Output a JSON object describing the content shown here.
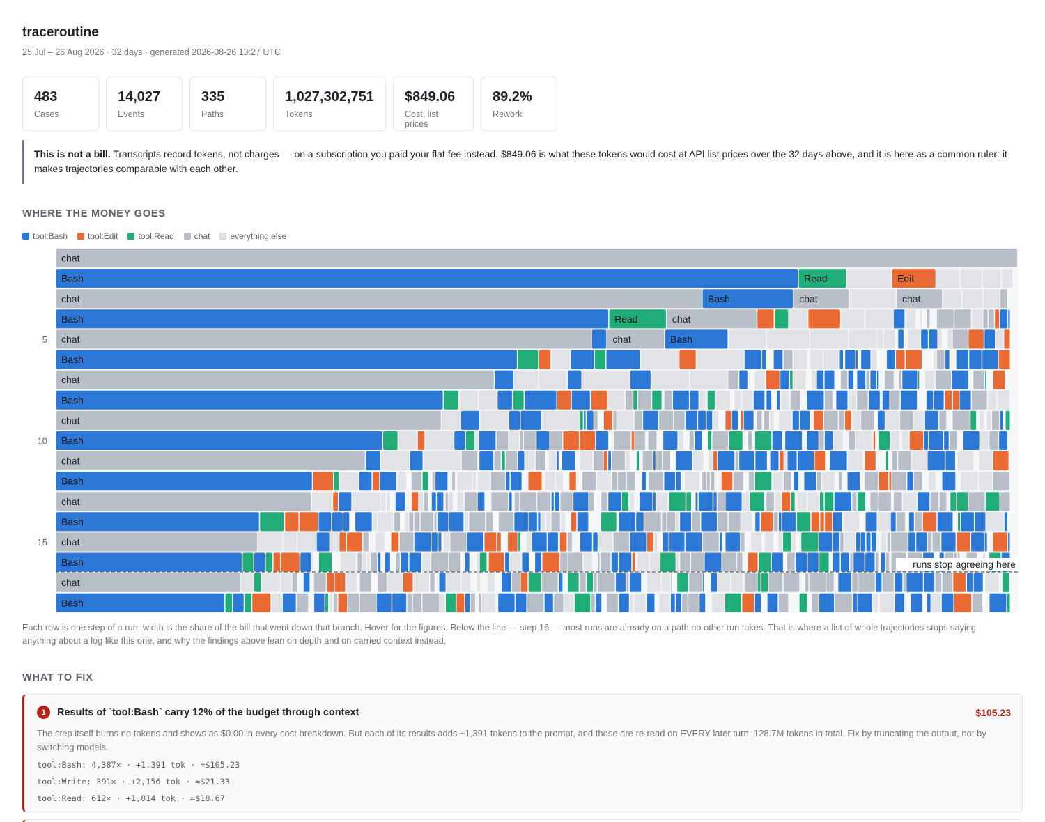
{
  "header": {
    "title": "traceroutine",
    "subtitle": "25 Jul – 26 Aug 2026 · 32 days · generated 2026-08-26 13:27 UTC"
  },
  "stats": [
    {
      "value": "483",
      "label": "Cases"
    },
    {
      "value": "14,027",
      "label": "Events"
    },
    {
      "value": "335",
      "label": "Paths"
    },
    {
      "value": "1,027,302,751",
      "label": "Tokens"
    },
    {
      "value": "$849.06",
      "label": "Cost, list prices"
    },
    {
      "value": "89.2%",
      "label": "Rework"
    }
  ],
  "note": {
    "bold": "This is not a bill.",
    "text": " Transcripts record tokens, not charges — on a subscription you paid your flat fee instead. $849.06 is what these tokens would cost at API list prices over the 32 days above, and it is here as a common ruler: it makes trajectories comparable with each other."
  },
  "money_section": {
    "title": "WHERE THE MONEY GOES",
    "legend": [
      {
        "label": "tool:Bash",
        "color": "#2b78d6"
      },
      {
        "label": "tool:Edit",
        "color": "#ea6a34"
      },
      {
        "label": "tool:Read",
        "color": "#20ad78"
      },
      {
        "label": "chat",
        "color": "#b8bec8"
      },
      {
        "label": "everything else",
        "color": "#e2e3e6"
      }
    ],
    "row_ticks": [
      "5",
      "10",
      "15"
    ],
    "divider_label": "runs stop agreeing here",
    "caption": "Each row is one step of a run; width is the share of the bill that went down that branch. Hover for the figures. Below the line — step 16 — most runs are already on a path no other run takes. That is where a list of whole trajectories stops saying anything about a log like this one, and why the findings above lean on depth and on carried context instead."
  },
  "chart_data": {
    "type": "icicle",
    "rows": 18,
    "divider_after_step": 16,
    "levels": [
      [
        {
          "n": "chat",
          "w": 1.0
        }
      ],
      [
        {
          "n": "Bash",
          "w": 0.772
        },
        {
          "n": "Read",
          "w": 0.05
        },
        {
          "n": "",
          "w": 0.047
        },
        {
          "n": "Edit",
          "w": 0.046
        },
        {
          "n": "",
          "w": 0.025
        },
        {
          "n": "",
          "w": 0.023
        },
        {
          "n": "",
          "w": 0.02
        },
        {
          "n": "",
          "w": 0.012
        }
      ],
      [
        {
          "n": "chat",
          "w": 0.672
        },
        {
          "n": "Bash",
          "w": 0.095
        },
        {
          "n": "chat",
          "w": 0.058
        },
        {
          "n": "",
          "w": 0.049
        },
        {
          "n": "chat",
          "w": 0.048
        },
        {
          "n": "",
          "w": 0.02
        },
        {
          "n": "",
          "w": 0.022
        },
        {
          "n": "",
          "w": 0.018
        }
      ],
      [
        {
          "n": "Bash",
          "w": 0.575
        },
        {
          "n": "Read",
          "w": 0.06
        },
        {
          "n": "chat",
          "w": 0.094
        },
        {
          "n": "Edit",
          "w": 0.018
        },
        {
          "n": "Read",
          "w": 0.015
        },
        {
          "n": "",
          "w": 0.02
        },
        {
          "n": "Edit",
          "w": 0.034
        },
        {
          "n": "",
          "w": 0.025
        },
        {
          "n": "",
          "w": 0.03
        }
      ],
      [
        {
          "n": "chat",
          "w": 0.557
        },
        {
          "n": "Bash",
          "w": 0.016
        },
        {
          "n": "chat",
          "w": 0.06
        },
        {
          "n": "Bash",
          "w": 0.066
        },
        {
          "n": "",
          "w": 0.04
        },
        {
          "n": "",
          "w": 0.045
        },
        {
          "n": "",
          "w": 0.04
        },
        {
          "n": "",
          "w": 0.03
        }
      ],
      [
        {
          "n": "Bash",
          "w": 0.48
        },
        {
          "n": "Read",
          "w": 0.022
        },
        {
          "n": "Edit",
          "w": 0.013
        },
        {
          "n": "",
          "w": 0.02
        },
        {
          "n": "Bash",
          "w": 0.025
        },
        {
          "n": "Read",
          "w": 0.012
        },
        {
          "n": "Bash",
          "w": 0.036
        },
        {
          "n": "",
          "w": 0.04
        },
        {
          "n": "Edit",
          "w": 0.018
        },
        {
          "n": "",
          "w": 0.05
        }
      ],
      [
        {
          "n": "chat",
          "w": 0.456
        },
        {
          "n": "Bash",
          "w": 0.02
        },
        {
          "n": "",
          "w": 0.026
        },
        {
          "n": "",
          "w": 0.03
        },
        {
          "n": "Bash",
          "w": 0.015
        },
        {
          "n": "",
          "w": 0.05
        },
        {
          "n": "Bash",
          "w": 0.022
        },
        {
          "n": "",
          "w": 0.04
        },
        {
          "n": "",
          "w": 0.04
        }
      ],
      [
        {
          "n": "Bash",
          "w": 0.403
        },
        {
          "n": "Read",
          "w": 0.016
        },
        {
          "n": "",
          "w": 0.02
        },
        {
          "n": "",
          "w": 0.02
        },
        {
          "n": "Bash",
          "w": 0.016
        },
        {
          "n": "Read",
          "w": 0.012
        },
        {
          "n": "Bash",
          "w": 0.034
        },
        {
          "n": "Edit",
          "w": 0.015
        },
        {
          "n": "Bash",
          "w": 0.02
        },
        {
          "n": "Edit",
          "w": 0.018
        }
      ],
      [
        {
          "n": "chat",
          "w": 0.401
        },
        {
          "n": "",
          "w": 0.02
        },
        {
          "n": "Bash",
          "w": 0.02
        },
        {
          "n": "",
          "w": 0.03
        },
        {
          "n": "Bash",
          "w": 0.012
        },
        {
          "n": "Bash",
          "w": 0.022
        },
        {
          "n": "",
          "w": 0.04
        }
      ],
      [
        {
          "n": "Bash",
          "w": 0.34
        },
        {
          "n": "Read",
          "w": 0.016
        },
        {
          "n": "",
          "w": 0.02
        },
        {
          "n": "Edit",
          "w": 0.008
        },
        {
          "n": "",
          "w": 0.03
        },
        {
          "n": "Bash",
          "w": 0.012
        },
        {
          "n": "Read",
          "w": 0.01
        }
      ],
      [
        {
          "n": "chat",
          "w": 0.322
        },
        {
          "n": "Bash",
          "w": 0.016
        },
        {
          "n": "",
          "w": 0.03
        },
        {
          "n": "Bash",
          "w": 0.014
        },
        {
          "n": "",
          "w": 0.04
        }
      ],
      [
        {
          "n": "Bash",
          "w": 0.267
        },
        {
          "n": "Edit",
          "w": 0.022
        },
        {
          "n": "Read",
          "w": 0.006
        },
        {
          "n": "",
          "w": 0.02
        },
        {
          "n": "Bash",
          "w": 0.014
        },
        {
          "n": "Edit",
          "w": 0.008
        }
      ],
      [
        {
          "n": "chat",
          "w": 0.266
        },
        {
          "n": "",
          "w": 0.022
        },
        {
          "n": "Edit",
          "w": 0.006
        },
        {
          "n": "Bash",
          "w": 0.014
        },
        {
          "n": "",
          "w": 0.03
        }
      ],
      [
        {
          "n": "Bash",
          "w": 0.212
        },
        {
          "n": "Read",
          "w": 0.026
        },
        {
          "n": "Edit",
          "w": 0.015
        },
        {
          "n": "Edit",
          "w": 0.02
        },
        {
          "n": "Bash",
          "w": 0.014
        },
        {
          "n": "Bash",
          "w": 0.012
        }
      ],
      [
        {
          "n": "chat",
          "w": 0.21
        },
        {
          "n": "",
          "w": 0.026
        },
        {
          "n": "",
          "w": 0.015
        },
        {
          "n": "",
          "w": 0.02
        },
        {
          "n": "Bash",
          "w": 0.014
        }
      ],
      [
        {
          "n": "Bash",
          "w": 0.194
        },
        {
          "n": "Read",
          "w": 0.012
        },
        {
          "n": "Bash",
          "w": 0.012
        },
        {
          "n": "Read",
          "w": 0.008
        },
        {
          "n": "Edit",
          "w": 0.008
        },
        {
          "n": "Edit",
          "w": 0.02
        },
        {
          "n": "Bash",
          "w": 0.012
        }
      ],
      [
        {
          "n": "chat",
          "w": 0.192
        },
        {
          "n": "",
          "w": 0.014
        },
        {
          "n": "Read",
          "w": 0.008
        },
        {
          "n": "",
          "w": 0.02
        },
        {
          "n": "",
          "w": 0.012
        }
      ],
      [
        {
          "n": "Bash",
          "w": 0.176
        },
        {
          "n": "Read",
          "w": 0.008
        },
        {
          "n": "Bash",
          "w": 0.012
        },
        {
          "n": "Read",
          "w": 0.008
        },
        {
          "n": "Edit",
          "w": 0.02
        },
        {
          "n": "",
          "w": 0.012
        }
      ]
    ]
  },
  "fix_section": {
    "title": "WHAT TO FIX",
    "items": [
      {
        "num": "1",
        "title": "Results of `tool:Bash` carry 12% of the budget through context",
        "cost": "$105.23",
        "body": "The step itself burns no tokens and shows as $0.00 in every cost breakdown. But each of its results adds ~1,391 tokens to the prompt, and those are re-read on EVERY later turn: 128.7M tokens in total. Fix by truncating the output, not by switching models.",
        "lines": [
          "tool:Bash: 4,387× · +1,391 tok · ≈$105.23",
          "tool:Write: 391× · +2,156 tok · ≈$21.33",
          "tool:Read: 612× · +1,814 tok · ≈$18.67"
        ]
      }
    ]
  }
}
